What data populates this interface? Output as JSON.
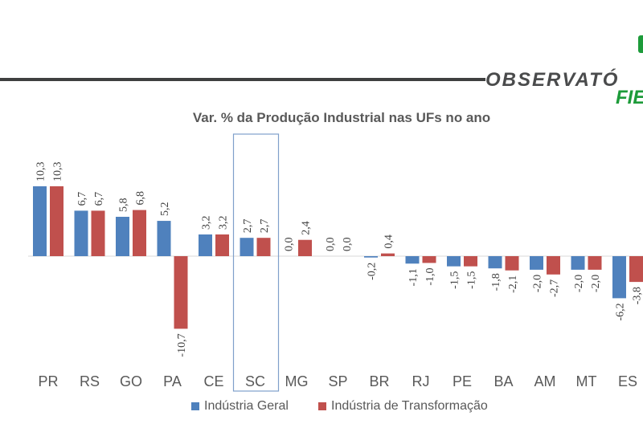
{
  "header": {
    "logo_text": "OBSERVATÓRIO FIEG",
    "logo_main": "OBSERVATÓ",
    "logo_sub": "FIE"
  },
  "chart_data": {
    "type": "bar",
    "title": "Var. % da Produção Industrial nas UFs no ano",
    "categories": [
      "PR",
      "RS",
      "GO",
      "PA",
      "CE",
      "SC",
      "MG",
      "SP",
      "BR",
      "RJ",
      "PE",
      "BA",
      "AM",
      "MT",
      "ES"
    ],
    "series": [
      {
        "name": "Indústria Geral",
        "color": "#4f81bd",
        "values": [
          10.3,
          6.7,
          5.8,
          5.2,
          3.2,
          2.7,
          0.0,
          0.0,
          -0.2,
          -1.1,
          -1.5,
          -1.8,
          -2.0,
          -2.0,
          -6.2
        ]
      },
      {
        "name": "Indústria de Transformação",
        "color": "#c0504d",
        "values": [
          10.3,
          6.7,
          6.8,
          -10.7,
          3.2,
          2.7,
          2.4,
          0.0,
          0.4,
          -1.0,
          -1.5,
          -2.1,
          -2.7,
          -2.0,
          -3.8
        ]
      }
    ],
    "highlighted_category": "SC",
    "decimal_separator": ",",
    "legend_position": "bottom",
    "grid": false
  }
}
